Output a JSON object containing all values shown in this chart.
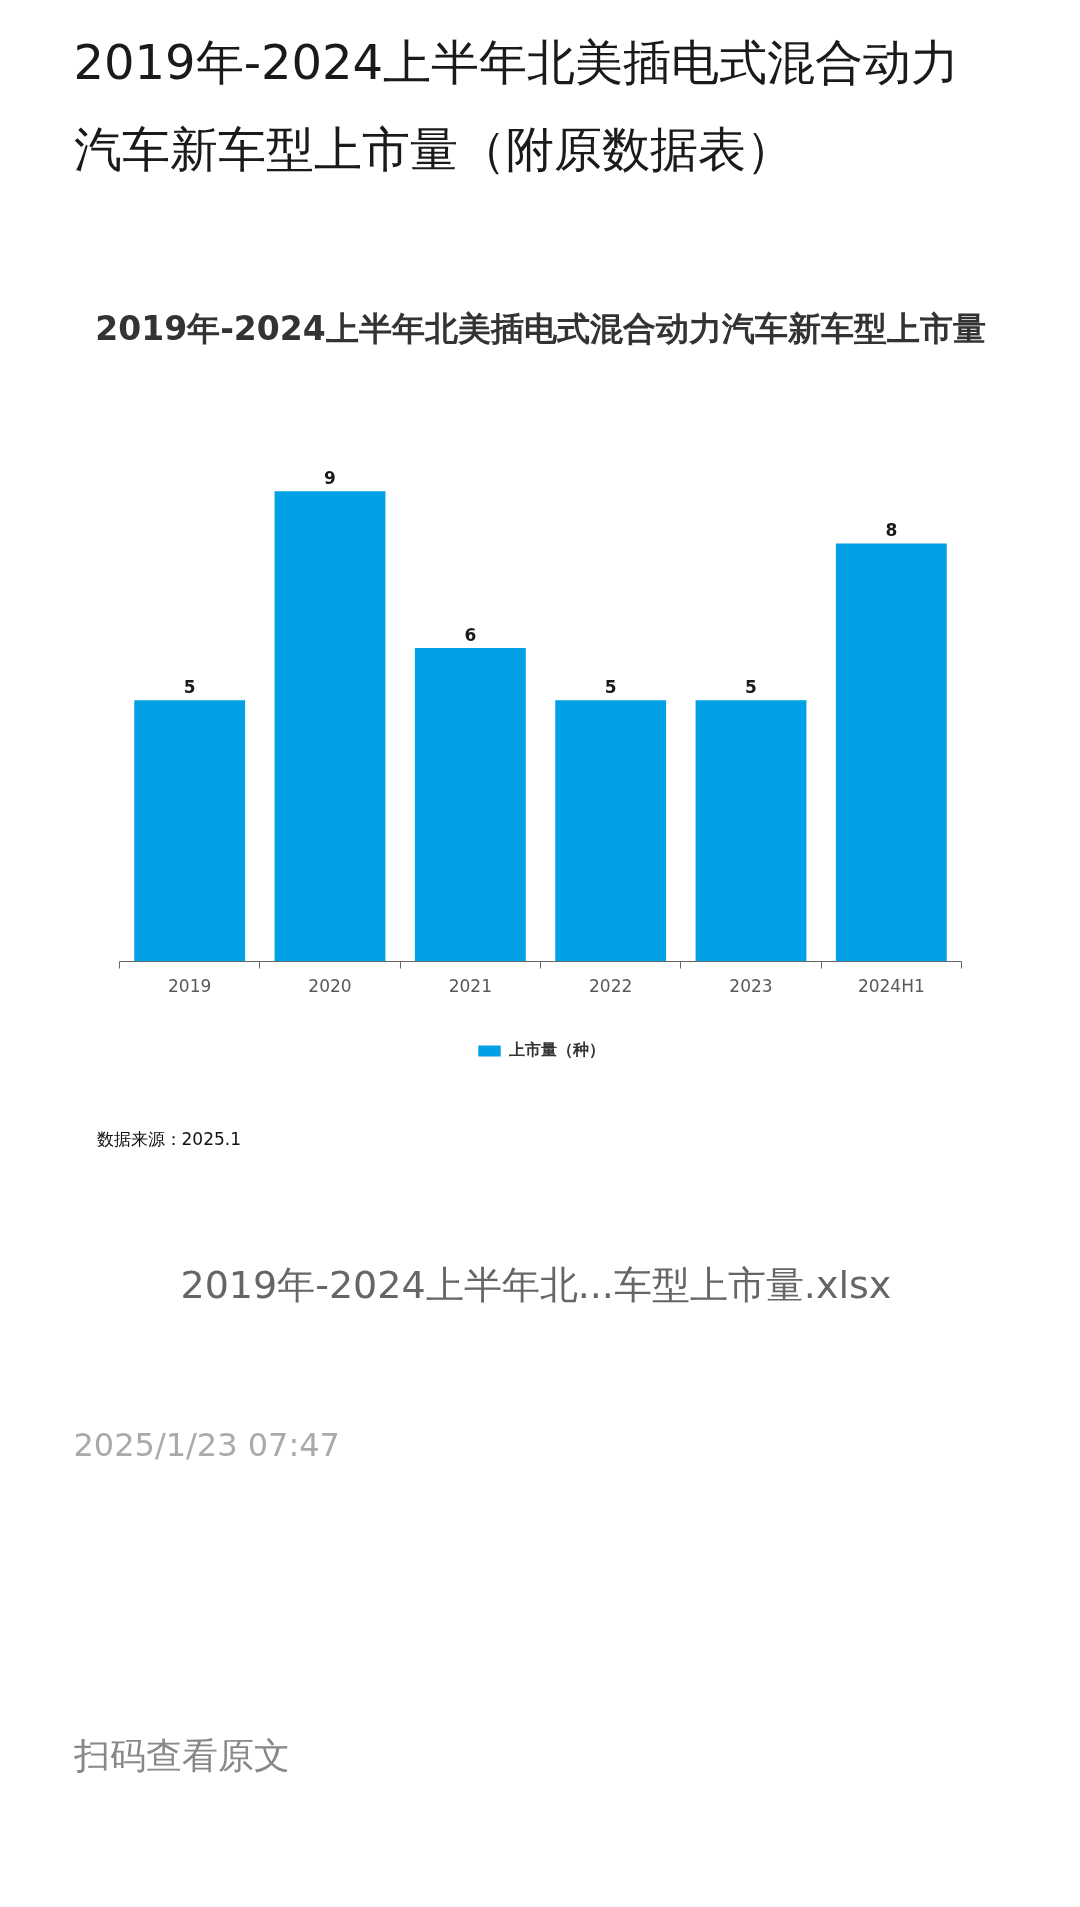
{
  "chart_data": {
    "type": "bar",
    "title": "2019年-2024上半年北美插电式混合动力汽车新车型上市量（附原数据表）",
    "subtitle": "2019年-2024上半年北美插电式混合动力汽车新车型上市量",
    "categories": [
      "2019",
      "2020",
      "2021",
      "2022",
      "2023",
      "2024H1"
    ],
    "series": [
      {
        "name": "上市量（种）",
        "color": "#02a0e5",
        "values": [
          5,
          9,
          6,
          5,
          5,
          8
        ]
      }
    ],
    "data_labels": true,
    "legend": "bottom",
    "tick_labels": "x",
    "annotations": [
      "数据来源：2025.1",
      "2019年-2024上半年北...车型上市量.xlsx",
      "2025/1/23 07:47",
      "扫码查看原文"
    ]
  }
}
